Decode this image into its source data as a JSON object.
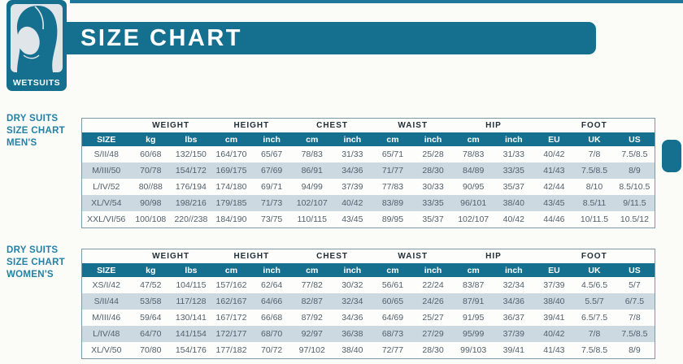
{
  "header": {
    "title": "SIZE CHART"
  },
  "logo": {
    "label": "WETSUITS",
    "icon": "wetsuit-hood-icon"
  },
  "sidebar": {
    "men_label": [
      "DRY SUITS",
      "SIZE CHART",
      "MEN'S"
    ],
    "women_label": [
      "DRY SUITS",
      "SIZE CHART",
      "WOMEN'S"
    ]
  },
  "colors": {
    "teal": "#156f8e",
    "row_stripe": "#ccd9e1",
    "header_text": "#ffffff",
    "body_text": "#51606b",
    "sidebar_text": "#2381a6"
  },
  "tables": {
    "group_headers": [
      {
        "label": "",
        "span": 1
      },
      {
        "label": "WEIGHT",
        "span": 2
      },
      {
        "label": "HEIGHT",
        "span": 2
      },
      {
        "label": "CHEST",
        "span": 2
      },
      {
        "label": "WAIST",
        "span": 2
      },
      {
        "label": "HIP",
        "span": 2
      },
      {
        "label": "FOOT",
        "span": 3
      }
    ],
    "columns": [
      "SIZE",
      "kg",
      "lbs",
      "cm",
      "inch",
      "cm",
      "inch",
      "cm",
      "inch",
      "cm",
      "inch",
      "EU",
      "UK",
      "US"
    ],
    "men_rows": [
      [
        "S/II/48",
        "60/68",
        "132/150",
        "164/170",
        "65/67",
        "78/83",
        "31/33",
        "65/71",
        "25/28",
        "78/83",
        "31/33",
        "40/42",
        "7/8",
        "7.5/8.5"
      ],
      [
        "M/III/50",
        "70/78",
        "154/172",
        "169/175",
        "67/69",
        "86/91",
        "34/36",
        "71/77",
        "28/30",
        "84/89",
        "33/35",
        "41/43",
        "7.5/8.5",
        "8/9"
      ],
      [
        "L/IV/52",
        "80//88",
        "176/194",
        "174/180",
        "69/71",
        "94/99",
        "37/39",
        "77/83",
        "30/33",
        "90/95",
        "35/37",
        "42/44",
        "8/10",
        "8.5/10.5"
      ],
      [
        "XL/V/54",
        "90/98",
        "198/216",
        "179/185",
        "71/73",
        "102/107",
        "40/42",
        "83/89",
        "33/35",
        "96/101",
        "38/40",
        "43/45",
        "8.5/11",
        "9/11.5"
      ],
      [
        "XXL/VI/56",
        "100/108",
        "220//238",
        "184/190",
        "73/75",
        "110/115",
        "43/45",
        "89/95",
        "35/37",
        "102/107",
        "40/42",
        "44/46",
        "10/11.5",
        "10.5/12"
      ]
    ],
    "women_rows": [
      [
        "XS/I/42",
        "47/52",
        "104/115",
        "157/162",
        "62/64",
        "77/82",
        "30/32",
        "56/61",
        "22/24",
        "83/87",
        "32/34",
        "37/39",
        "4.5/6.5",
        "5/7"
      ],
      [
        "S/II/44",
        "53/58",
        "117/128",
        "162/167",
        "64/66",
        "82/87",
        "32/34",
        "60/65",
        "24/26",
        "87/91",
        "34/36",
        "38/40",
        "5.5/7",
        "6/7.5"
      ],
      [
        "M/III/46",
        "59/64",
        "130/141",
        "167/172",
        "66/68",
        "87/92",
        "34/36",
        "64/69",
        "25/27",
        "91/95",
        "36/37",
        "39/41",
        "6.5/7.5",
        "7/8"
      ],
      [
        "L/IV/48",
        "64/70",
        "141/154",
        "172/177",
        "68/70",
        "92/97",
        "36/38",
        "68/73",
        "27/29",
        "95/99",
        "37/39",
        "40/42",
        "7/8",
        "7.5/8.5"
      ],
      [
        "XL/V/50",
        "70/80",
        "154/176",
        "177/182",
        "70/72",
        "97/102",
        "38/40",
        "72/77",
        "28/30",
        "99/103",
        "39/41",
        "41/43",
        "7.5/8.5",
        "8/9"
      ]
    ]
  }
}
